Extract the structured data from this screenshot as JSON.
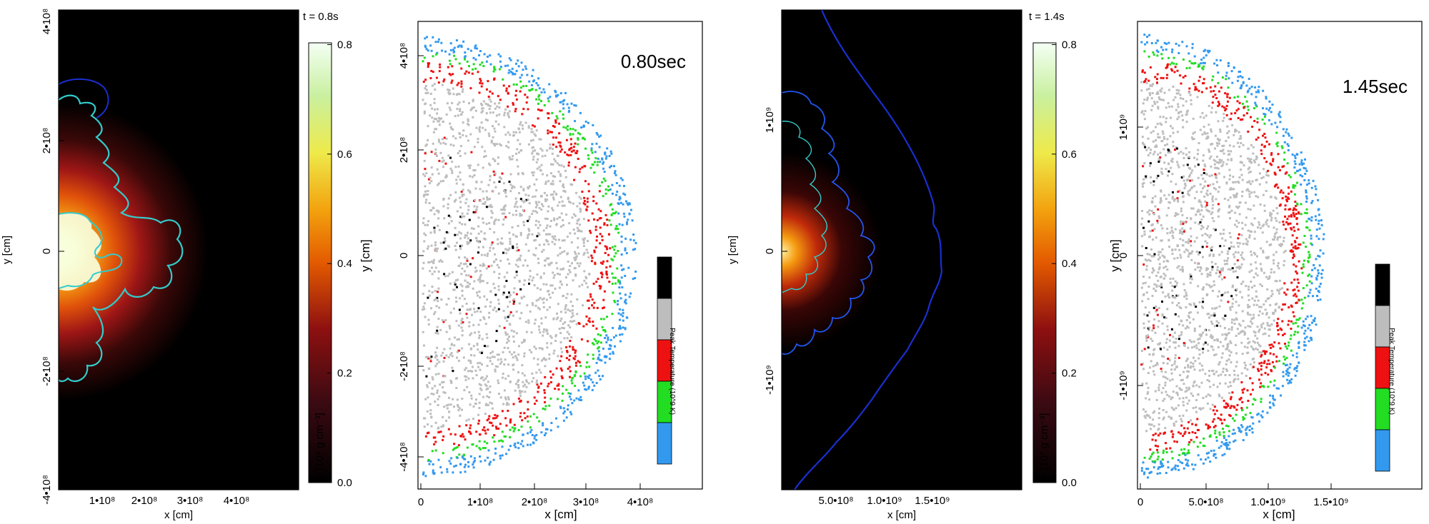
{
  "panels": [
    {
      "id": "a",
      "time_label": "t = 0.8s",
      "x_label": "x [cm]",
      "y_label": "y [cm]",
      "x_ticks": [
        "1•10⁸",
        "2•10⁸",
        "3•10⁸",
        "4•10⁸"
      ],
      "y_ticks": [
        "4•10⁸",
        "2•10⁸",
        "0",
        "-2•10⁸",
        "-4•10⁸"
      ],
      "colorbar_ticks": [
        "0.0",
        "0.2",
        "0.4",
        "0.6",
        "0.8"
      ],
      "colorbar_label": "ρ [10⁸ g cm⁻³]"
    },
    {
      "id": "b",
      "time_label": "0.80sec",
      "x_label": "x [cm]",
      "y_label": "y [cm]",
      "x_ticks": [
        "0",
        "1•10⁸",
        "2•10⁸",
        "3•10⁸",
        "4•10⁸"
      ],
      "y_ticks": [
        "4•10⁸",
        "2•10⁸",
        "0",
        "-2•10⁸",
        "-4•10⁸"
      ],
      "legend_label": "Peak Temperature (10^9 K)",
      "legend_colors": [
        "#000000",
        "#bdbdbd",
        "#ee1111",
        "#22dd22",
        "#3399ee"
      ]
    },
    {
      "id": "c",
      "time_label": "t = 1.4s",
      "x_label": "x [cm]",
      "y_label": "y [cm]",
      "x_ticks": [
        "5.0•10⁸",
        "1.0•10⁹",
        "1.5•10⁹"
      ],
      "y_ticks": [
        "1•10⁹",
        "0",
        "-1•10⁹"
      ],
      "colorbar_ticks": [
        "0.0",
        "0.2",
        "0.4",
        "0.6",
        "0.8"
      ],
      "colorbar_label": "ρ [10⁷ g cm⁻³]"
    },
    {
      "id": "d",
      "time_label": "1.45sec",
      "x_label": "x [cm]",
      "y_label": "y [cm]",
      "x_ticks": [
        "0",
        "5.0•10⁸",
        "1.0•10⁹",
        "1.5•10⁹"
      ],
      "y_ticks": [
        "1•10⁹",
        "0",
        "-1•10⁹"
      ],
      "legend_label": "Peak Temperature (10^9 K)",
      "legend_colors": [
        "#000000",
        "#bdbdbd",
        "#ee1111",
        "#22dd22",
        "#3399ee"
      ]
    }
  ],
  "colors": {
    "contour_cyan": "#33cccc",
    "contour_blue": "#1a2fd0",
    "black": "#000000",
    "grey": "#bdbdbd",
    "red": "#ee1111",
    "green": "#22dd22",
    "blue": "#3399ee"
  }
}
